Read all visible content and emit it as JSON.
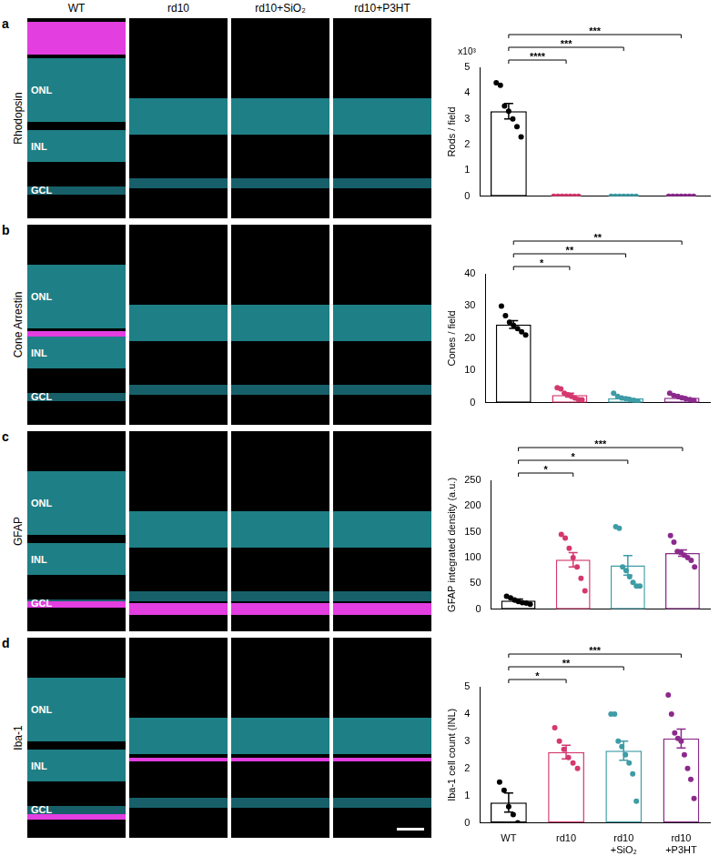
{
  "figure": {
    "columns": [
      "WT",
      "rd10",
      "rd10+SiO₂",
      "rd10+P3HT"
    ],
    "rows": [
      {
        "letter": "a",
        "stain": "Rhodopsin",
        "layers": [
          "ONL",
          "INL",
          "GCL"
        ]
      },
      {
        "letter": "b",
        "stain": "Cone Arrestin",
        "layers": [
          "ONL",
          "INL",
          "GCL"
        ]
      },
      {
        "letter": "c",
        "stain": "GFAP",
        "layers": [
          "ONL",
          "INL",
          "GCL"
        ]
      },
      {
        "letter": "d",
        "stain": "Iba-1",
        "layers": [
          "ONL",
          "INL",
          "GCL"
        ]
      }
    ]
  },
  "chart_data": [
    {
      "type": "bar",
      "categories": [
        null,
        null,
        null,
        null
      ],
      "values": [
        3.3,
        0,
        0,
        0
      ],
      "errors": [
        0.3,
        0,
        0,
        0
      ],
      "points": [
        [
          4.4,
          4.3,
          3.5,
          3.3,
          3.0,
          2.7,
          2.3
        ],
        [
          0,
          0,
          0,
          0,
          0,
          0,
          0
        ],
        [
          0,
          0,
          0,
          0,
          0,
          0,
          0
        ],
        [
          0,
          0,
          0,
          0,
          0,
          0,
          0
        ]
      ],
      "colors": [
        "#000000",
        "#d4386f",
        "#3d9ca6",
        "#8b2a8c"
      ],
      "y_label": "Rods / field",
      "annotation": "x10³",
      "ylim": [
        0,
        5
      ],
      "yticks": [
        0,
        1,
        2,
        3,
        4,
        5
      ],
      "grid": false,
      "comparisons": [
        {
          "from": 0,
          "to": 1,
          "label": "****"
        },
        {
          "from": 0,
          "to": 2,
          "label": "***"
        },
        {
          "from": 0,
          "to": 3,
          "label": "***"
        }
      ]
    },
    {
      "type": "bar",
      "categories": [
        null,
        null,
        null,
        null
      ],
      "values": [
        24.3,
        2.4,
        1.4,
        1.6
      ],
      "errors": [
        1.2,
        0.6,
        0.3,
        0.3
      ],
      "points": [
        [
          30,
          27,
          25,
          24,
          23,
          22,
          21
        ],
        [
          4.7,
          4.3,
          3,
          2.5,
          2,
          1.5,
          1,
          0.9
        ],
        [
          3,
          2,
          1.5,
          1.3,
          1,
          0.8,
          0.5
        ],
        [
          3,
          2.3,
          2,
          1.6,
          1.2,
          1,
          0.7
        ]
      ],
      "colors": [
        "#000000",
        "#d4386f",
        "#3d9ca6",
        "#8b2a8c"
      ],
      "y_label": "Cones / field",
      "ylim": [
        0,
        40
      ],
      "yticks": [
        0,
        10,
        20,
        30,
        40
      ],
      "grid": false,
      "comparisons": [
        {
          "from": 0,
          "to": 1,
          "label": "*"
        },
        {
          "from": 0,
          "to": 2,
          "label": "**"
        },
        {
          "from": 0,
          "to": 3,
          "label": "**"
        }
      ]
    },
    {
      "type": "bar",
      "categories": [
        null,
        null,
        null,
        null
      ],
      "values": [
        17,
        96,
        85,
        109
      ],
      "errors": [
        3,
        14,
        19,
        6
      ],
      "points": [
        [
          25,
          22,
          18,
          15,
          13,
          12,
          10
        ],
        [
          145,
          138,
          118,
          100,
          82,
          60,
          36
        ],
        [
          160,
          157,
          82,
          75,
          63,
          52,
          45,
          45
        ],
        [
          143,
          130,
          112,
          110,
          105,
          100,
          95,
          82
        ]
      ],
      "colors": [
        "#000000",
        "#d4386f",
        "#3d9ca6",
        "#8b2a8c"
      ],
      "y_label": "GFAP integrated density (a.u.)",
      "ylim": [
        0,
        250
      ],
      "yticks": [
        0,
        50,
        100,
        150,
        200,
        250
      ],
      "grid": false,
      "comparisons": [
        {
          "from": 0,
          "to": 1,
          "label": "*"
        },
        {
          "from": 0,
          "to": 2,
          "label": "*"
        },
        {
          "from": 0,
          "to": 3,
          "label": "***"
        }
      ]
    },
    {
      "type": "bar",
      "categories": [
        "WT",
        "rd10",
        "rd10 +SiO₂",
        "rd10 +P3HT"
      ],
      "values": [
        0.75,
        2.6,
        2.65,
        3.1
      ],
      "errors": [
        0.35,
        0.25,
        0.35,
        0.35
      ],
      "points": [
        [
          1.5,
          1.2,
          0.6,
          0.3,
          0
        ],
        [
          3.5,
          3,
          2.7,
          2.4,
          2.2,
          2.0
        ],
        [
          4,
          4,
          3,
          2.8,
          2.5,
          2.2,
          1.8,
          0.8
        ],
        [
          4.7,
          4,
          3.3,
          3.1,
          3,
          2.5,
          2,
          1.6,
          0.9
        ]
      ],
      "colors": [
        "#000000",
        "#d4386f",
        "#3d9ca6",
        "#8b2a8c"
      ],
      "y_label": "Iba-1 cell count (INL)",
      "ylim": [
        0,
        5
      ],
      "yticks": [
        0,
        1,
        2,
        3,
        4,
        5
      ],
      "grid": false,
      "comparisons": [
        {
          "from": 0,
          "to": 1,
          "label": "*"
        },
        {
          "from": 0,
          "to": 2,
          "label": "**"
        },
        {
          "from": 0,
          "to": 3,
          "label": "***"
        }
      ]
    }
  ]
}
